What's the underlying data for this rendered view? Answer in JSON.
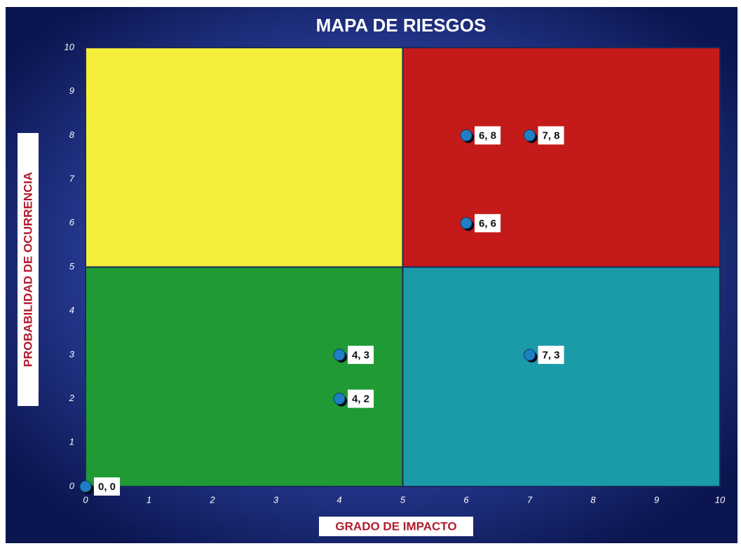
{
  "chart_data": {
    "type": "scatter",
    "title": "MAPA DE RIESGOS",
    "x_label": "GRADO  DE  IMPACTO",
    "y_label": "PROBABILIDAD  DE OCURRENCIA",
    "x": [
      0,
      4,
      4,
      6,
      7,
      6,
      7
    ],
    "values": [
      0,
      3,
      2,
      8,
      8,
      6,
      3
    ],
    "value_labels": [
      "0, 0",
      "4, 3",
      "4, 2",
      "6, 8",
      "7, 8",
      "6, 6",
      "7, 3"
    ],
    "color": "#1f7fc4",
    "xlim": [
      0,
      10
    ],
    "ylim": [
      0,
      10
    ],
    "xticks": [
      0,
      1,
      2,
      3,
      4,
      5,
      6,
      7,
      8,
      9,
      10
    ],
    "yticks": [
      0,
      1,
      2,
      3,
      4,
      5,
      6,
      7,
      8,
      9,
      10
    ],
    "grid": false,
    "regions": [
      {
        "color": "#f4ee3a",
        "xlim": [
          0,
          5
        ],
        "ylim": [
          5,
          10
        ]
      },
      {
        "color": "#c41a1a",
        "xlim": [
          5,
          10
        ],
        "ylim": [
          5,
          10
        ]
      },
      {
        "color": "#1f9a34",
        "xlim": [
          0,
          5
        ],
        "ylim": [
          0,
          5
        ]
      },
      {
        "color": "#1b9aa8",
        "xlim": [
          5,
          10
        ],
        "ylim": [
          0,
          5
        ]
      }
    ]
  }
}
